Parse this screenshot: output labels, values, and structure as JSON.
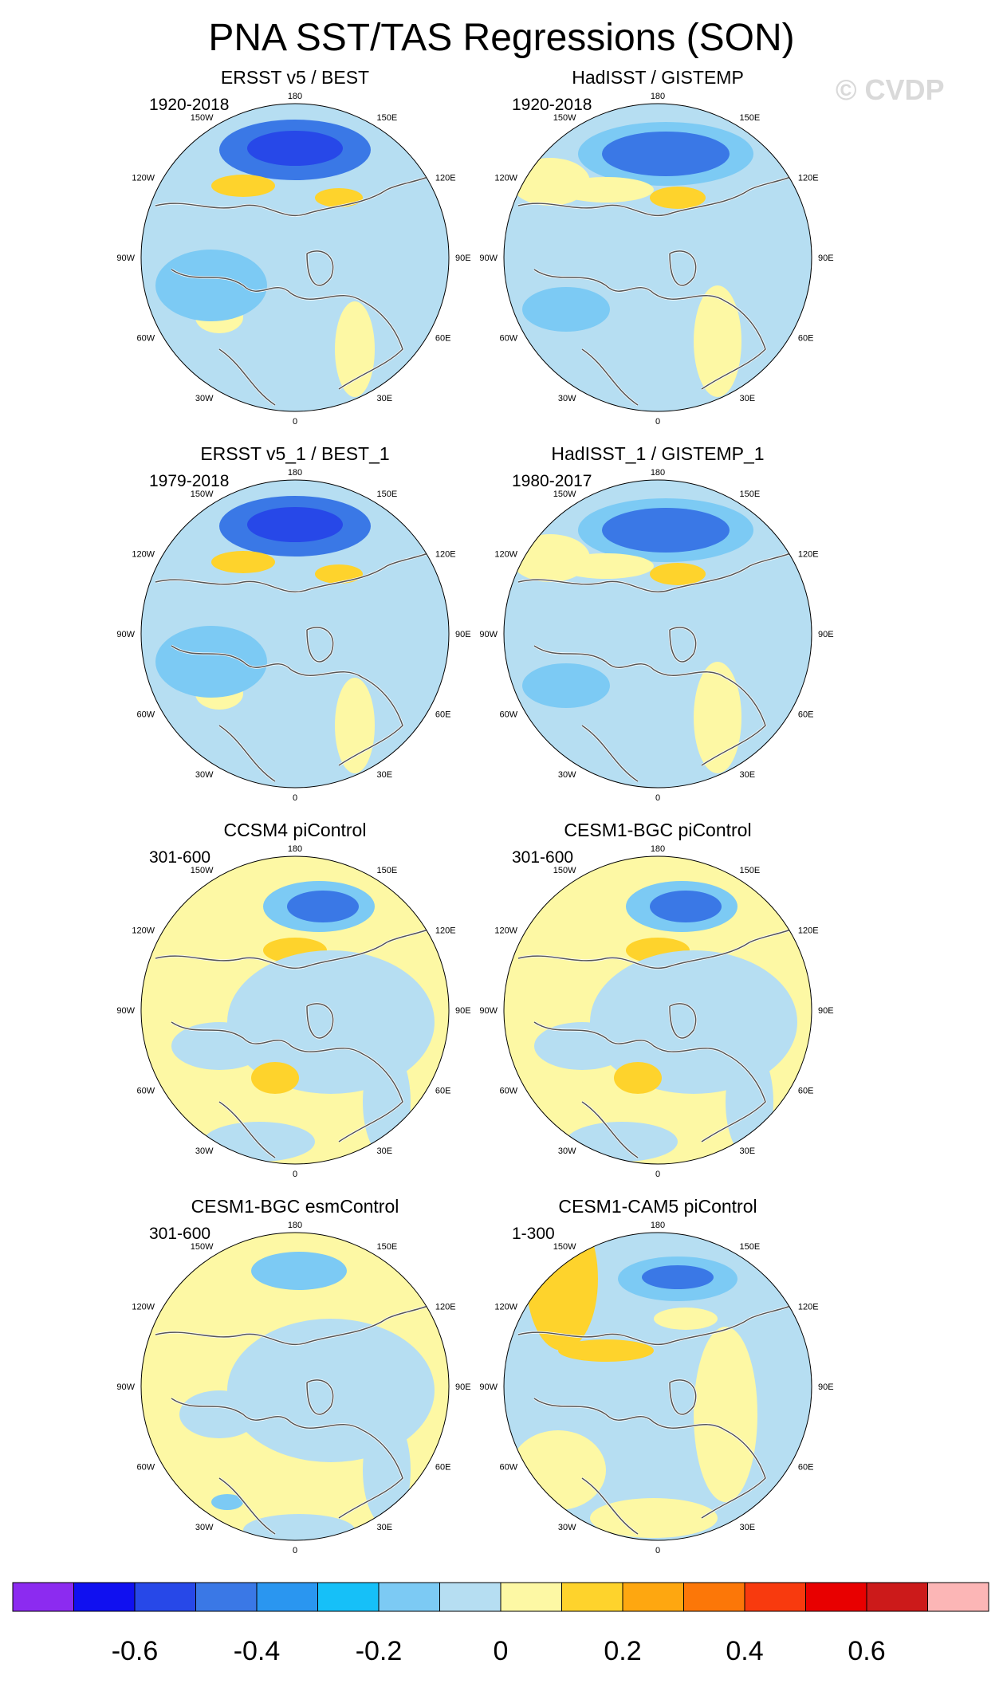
{
  "figure": {
    "title": "PNA SST/TAS Regressions (SON)",
    "watermark": "© CVDP"
  },
  "lon_labels": {
    "top": "180",
    "bottom": "0",
    "right": "90E",
    "left": "90W",
    "upper_right_outer": "120E",
    "upper_right_inner": "150E",
    "lower_right_outer": "60E",
    "lower_right_inner": "30E",
    "upper_left_outer": "120W",
    "upper_left_inner": "150W",
    "lower_left_outer": "60W",
    "lower_left_inner": "30W"
  },
  "panels": [
    {
      "title": "ERSST v5 / BEST",
      "period": "1920-2018",
      "style": "obs"
    },
    {
      "title": "HadISST / GISTEMP",
      "period": "1920-2018",
      "style": "obs2"
    },
    {
      "title": "ERSST v5_1 / BEST_1",
      "period": "1979-2018",
      "style": "obs"
    },
    {
      "title": "HadISST_1 / GISTEMP_1",
      "period": "1980-2017",
      "style": "obs2"
    },
    {
      "title": "CCSM4 piControl",
      "period": "301-600",
      "style": "model"
    },
    {
      "title": "CESM1-BGC piControl",
      "period": "301-600",
      "style": "model"
    },
    {
      "title": "CESM1-BGC esmControl",
      "period": "301-600",
      "style": "model2"
    },
    {
      "title": "CESM1-CAM5 piControl",
      "period": "1-300",
      "style": "model3"
    }
  ],
  "colorbar": {
    "colors": [
      "#8c2bf0",
      "#1010f0",
      "#2748e8",
      "#3a78e6",
      "#2a96f0",
      "#16c0f8",
      "#7ccaf4",
      "#b6def2",
      "#fdf8a4",
      "#fed32c",
      "#fea710",
      "#fc7708",
      "#f83a0e",
      "#e80000",
      "#cc1a1a",
      "#fcb6b6"
    ],
    "tick_labels": [
      "-0.6",
      "-0.4",
      "-0.2",
      "0",
      "0.2",
      "0.4",
      "0.6"
    ],
    "tick_values": [
      -0.6,
      -0.4,
      -0.2,
      0,
      0.2,
      0.4,
      0.6
    ],
    "levels": [
      -0.7,
      -0.6,
      -0.5,
      -0.4,
      -0.3,
      -0.2,
      -0.1,
      0,
      0.1,
      0.2,
      0.3,
      0.4,
      0.5,
      0.6,
      0.7
    ]
  }
}
